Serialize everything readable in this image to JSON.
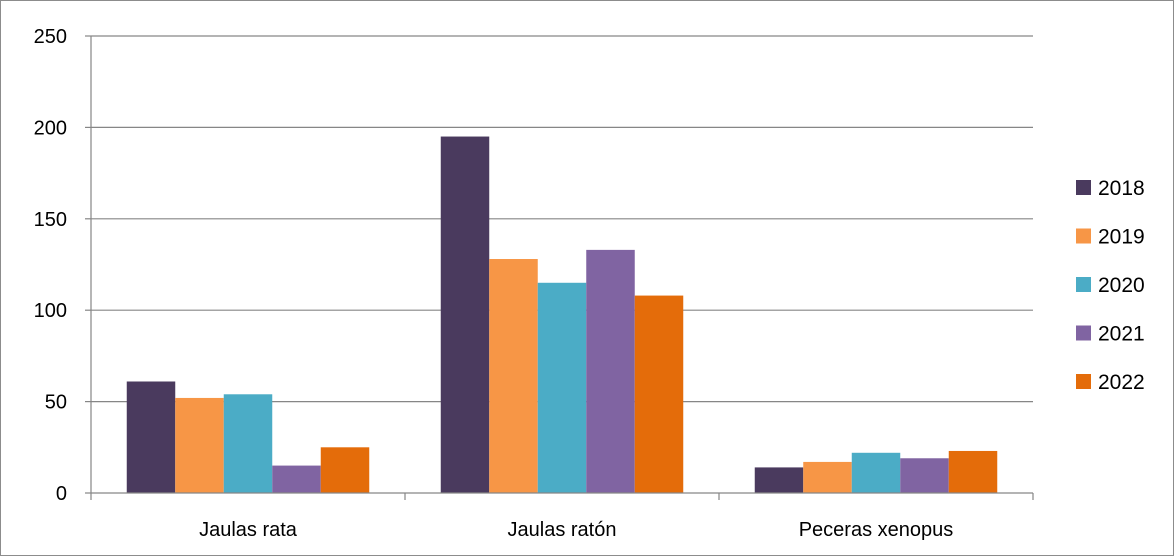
{
  "chart_data": {
    "type": "bar",
    "title": "",
    "xlabel": "",
    "ylabel": "",
    "categories": [
      "Jaulas rata",
      "Jaulas ratón",
      "Peceras xenopus"
    ],
    "series": [
      {
        "name": "2018",
        "color": "#4a3a5e",
        "values": [
          61,
          195,
          14
        ]
      },
      {
        "name": "2019",
        "color": "#f79646",
        "values": [
          52,
          128,
          17
        ]
      },
      {
        "name": "2020",
        "color": "#4bacc6",
        "values": [
          54,
          115,
          22
        ]
      },
      {
        "name": "2021",
        "color": "#8064a2",
        "values": [
          15,
          133,
          19
        ]
      },
      {
        "name": "2022",
        "color": "#e46c0a",
        "values": [
          25,
          108,
          23
        ]
      }
    ],
    "ylim": [
      0,
      250
    ],
    "yticks": [
      "0",
      "50",
      "100",
      "150",
      "200",
      "250"
    ],
    "grid": true,
    "legend_position": "right"
  }
}
